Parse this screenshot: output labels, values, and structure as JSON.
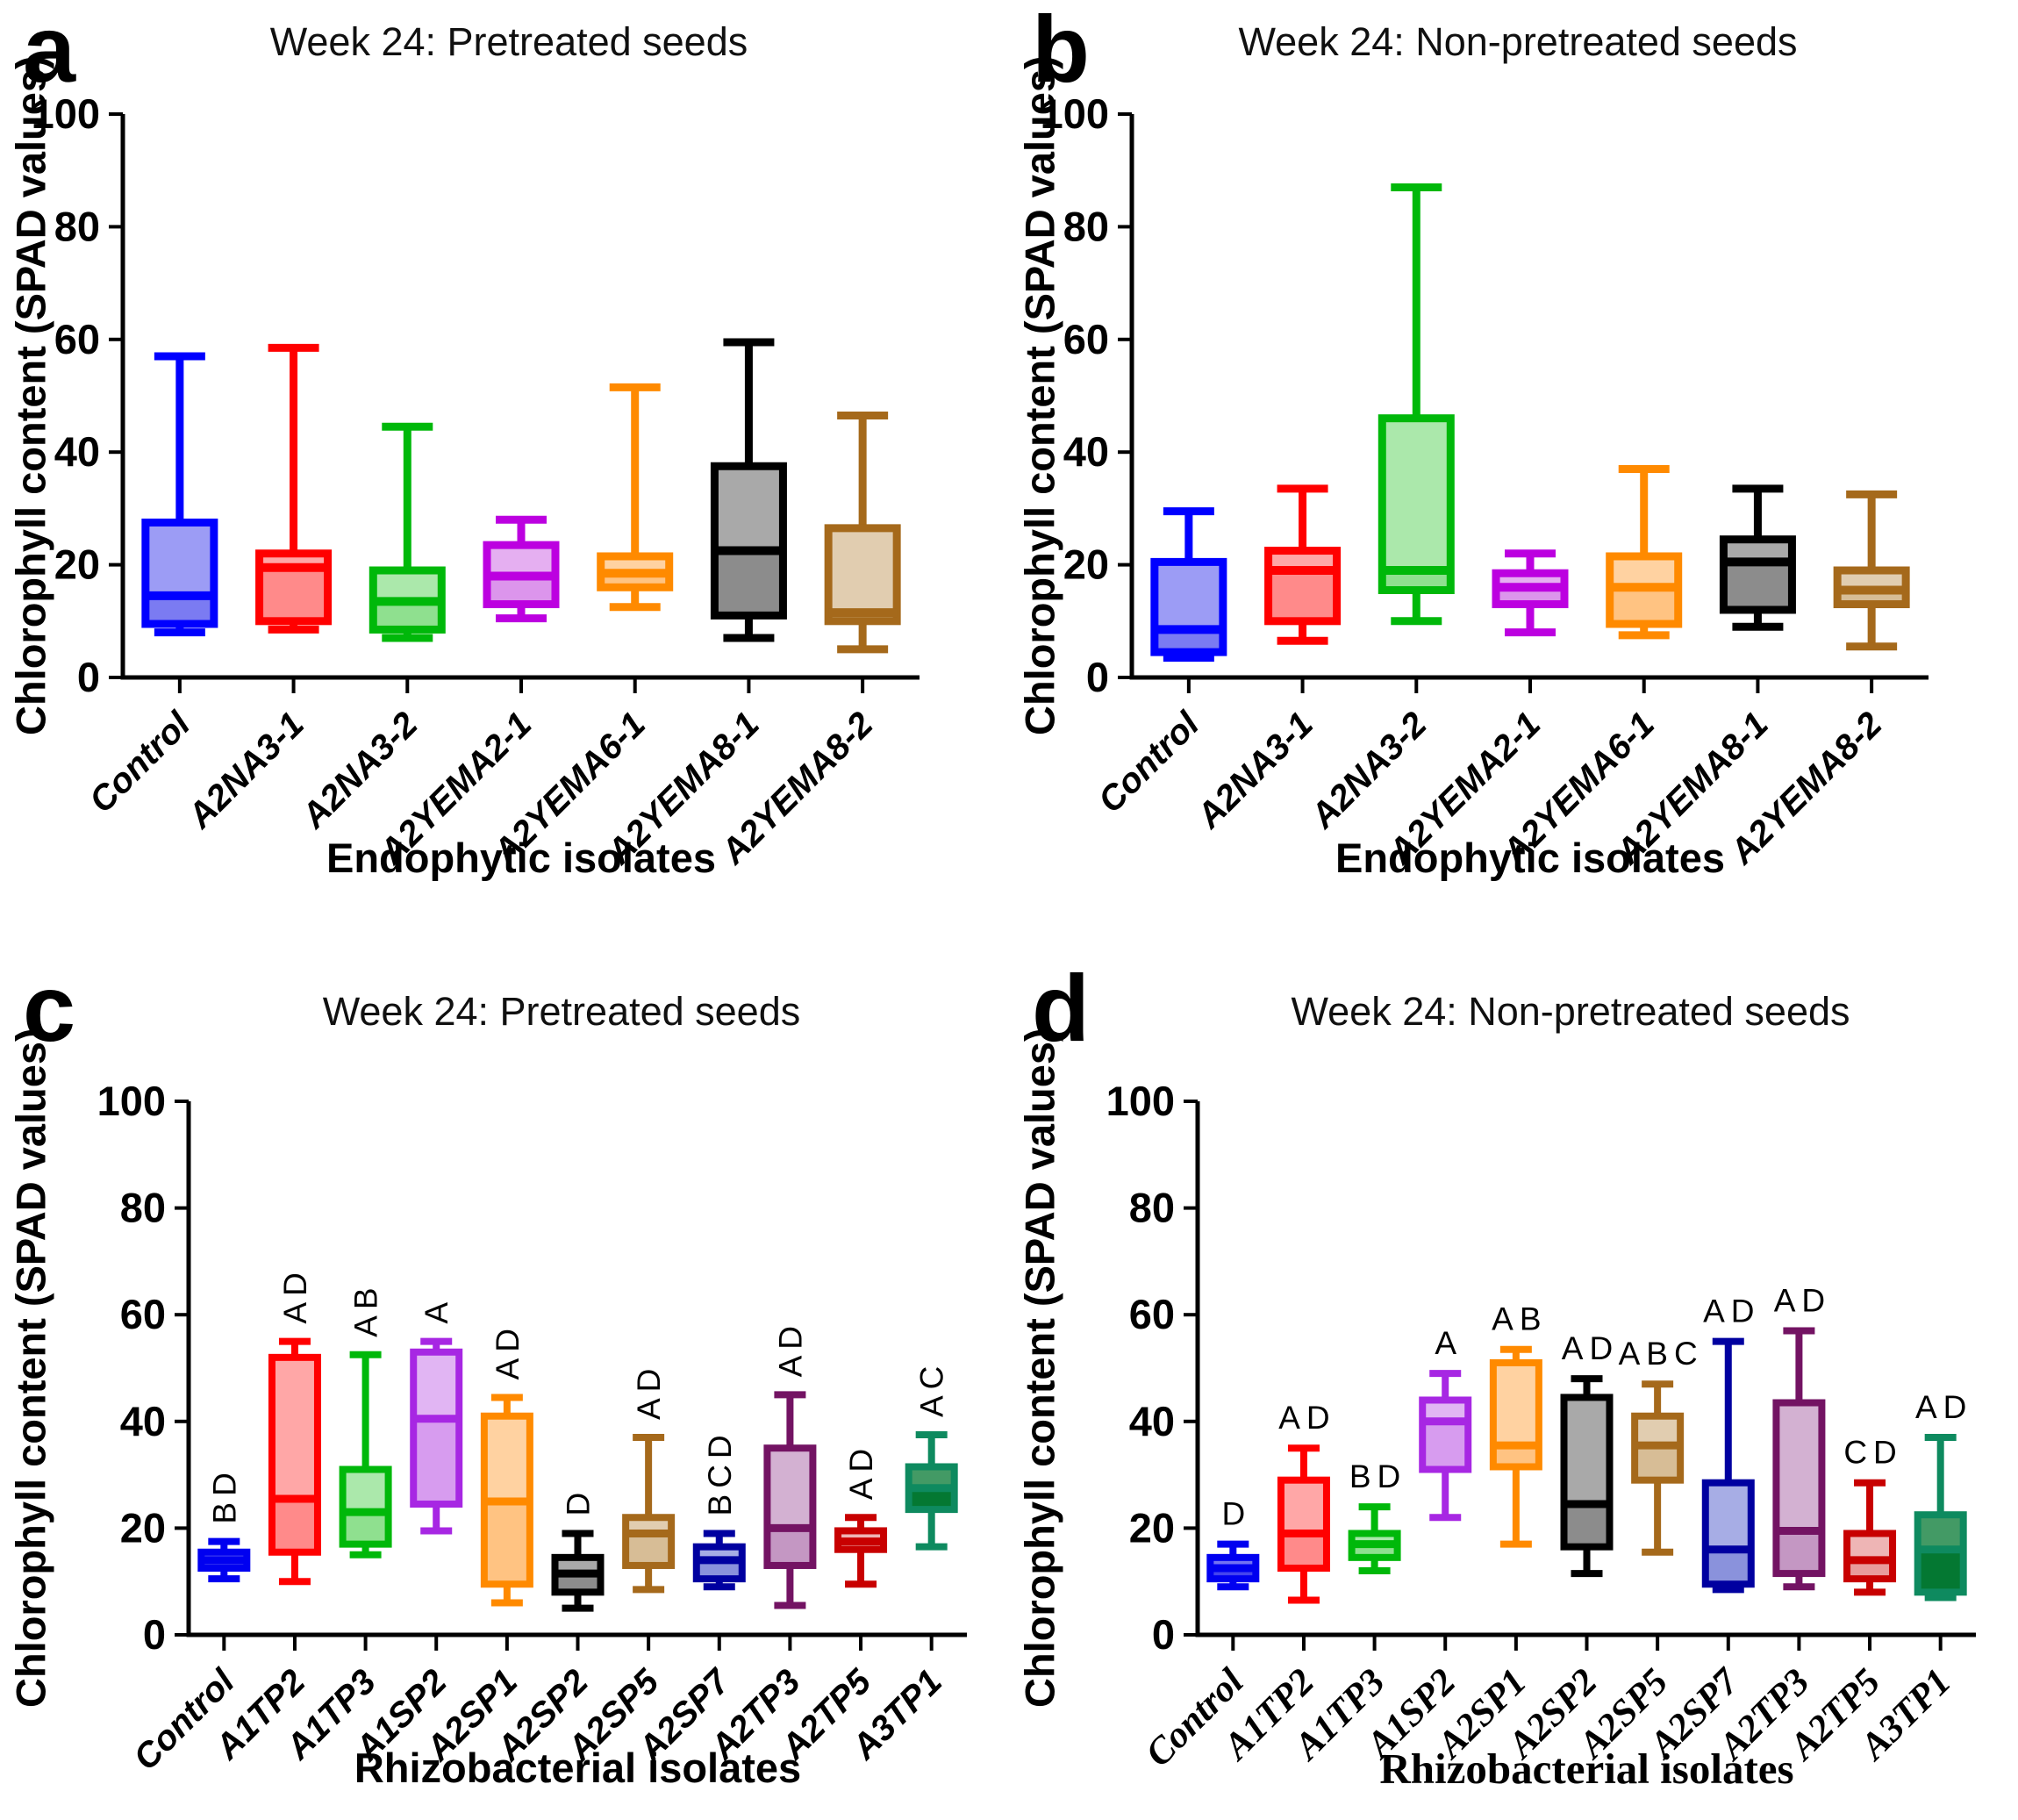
{
  "figure": {
    "background": "#ffffff"
  },
  "chart_data": [
    {
      "panel_letter": "a",
      "type": "box",
      "layout": "ab",
      "title": "Week 24: Pretreated seeds",
      "xlabel": "Endophytic isolates",
      "ylabel": "Chlorophyll content (SPAD values)",
      "ylim": [
        0,
        100
      ],
      "yticks": [
        0,
        20,
        40,
        60,
        80,
        100
      ],
      "grid": false,
      "letters_orientation": null,
      "categories": [
        "Control",
        "A2NA3-1",
        "A2NA3-2",
        "A2YEMA2-1",
        "A2YEMA6-1",
        "A2YEMA8-1",
        "A2YEMA8-2"
      ],
      "boxes": [
        {
          "category": "Control",
          "letters": "",
          "color": {
            "line": "#0000FF",
            "fill": "#7B7BF2"
          },
          "stats": {
            "min": 8,
            "q1": 9.5,
            "median": 14.5,
            "q3": 27.5,
            "max": 57
          }
        },
        {
          "category": "A2NA3-1",
          "letters": "",
          "color": {
            "line": "#FF0000",
            "fill": "#FF8A8A"
          },
          "stats": {
            "min": 8.5,
            "q1": 10,
            "median": 19.5,
            "q3": 22,
            "max": 58.5
          }
        },
        {
          "category": "A2NA3-2",
          "letters": "",
          "color": {
            "line": "#00B80A",
            "fill": "#8FE08F"
          },
          "stats": {
            "min": 7,
            "q1": 8.5,
            "median": 13.5,
            "q3": 19,
            "max": 44.5
          }
        },
        {
          "category": "A2YEMA2-1",
          "letters": "",
          "color": {
            "line": "#BC00E0",
            "fill": "#DC95EC"
          },
          "stats": {
            "min": 10.5,
            "q1": 13,
            "median": 18,
            "q3": 23.5,
            "max": 28
          }
        },
        {
          "category": "A2YEMA6-1",
          "letters": "",
          "color": {
            "line": "#FF8A00",
            "fill": "#FFC382"
          },
          "stats": {
            "min": 12.5,
            "q1": 16,
            "median": 18.5,
            "q3": 21.5,
            "max": 51.5
          }
        },
        {
          "category": "A2YEMA8-1",
          "letters": "",
          "color": {
            "line": "#000000",
            "fill": "#8C8C8C"
          },
          "stats": {
            "min": 7,
            "q1": 11,
            "median": 22.5,
            "q3": 37.5,
            "max": 59.5
          }
        },
        {
          "category": "A2YEMA8-2",
          "letters": "",
          "color": {
            "line": "#A5691B",
            "fill": "#D7BD96"
          },
          "stats": {
            "min": 5,
            "q1": 10,
            "median": 11.5,
            "q3": 26.5,
            "max": 46.5
          }
        }
      ]
    },
    {
      "panel_letter": "b",
      "type": "box",
      "layout": "ab",
      "title": "Week 24: Non-pretreated seeds",
      "xlabel": "Endophytic isolates",
      "ylabel": "Chlorophyll content (SPAD values)",
      "ylim": [
        0,
        100
      ],
      "yticks": [
        0,
        20,
        40,
        60,
        80,
        100
      ],
      "grid": false,
      "letters_orientation": null,
      "categories": [
        "Control",
        "A2NA3-1",
        "A2NA3-2",
        "A2YEMA2-1",
        "A2YEMA6-1",
        "A2YEMA8-1",
        "A2YEMA8-2"
      ],
      "boxes": [
        {
          "category": "Control",
          "letters": "",
          "color": {
            "line": "#0000FF",
            "fill": "#7B7BF2"
          },
          "stats": {
            "min": 3.5,
            "q1": 4.5,
            "median": 8.5,
            "q3": 20.5,
            "max": 29.5
          }
        },
        {
          "category": "A2NA3-1",
          "letters": "",
          "color": {
            "line": "#FF0000",
            "fill": "#FF8A8A"
          },
          "stats": {
            "min": 6.5,
            "q1": 10,
            "median": 19,
            "q3": 22.5,
            "max": 33.5
          }
        },
        {
          "category": "A2NA3-2",
          "letters": "",
          "color": {
            "line": "#00B80A",
            "fill": "#8FE08F"
          },
          "stats": {
            "min": 10,
            "q1": 15.5,
            "median": 19,
            "q3": 46,
            "max": 87
          }
        },
        {
          "category": "A2YEMA2-1",
          "letters": "",
          "color": {
            "line": "#BC00E0",
            "fill": "#DC95EC"
          },
          "stats": {
            "min": 8,
            "q1": 13,
            "median": 16,
            "q3": 18.5,
            "max": 22
          }
        },
        {
          "category": "A2YEMA6-1",
          "letters": "",
          "color": {
            "line": "#FF8A00",
            "fill": "#FFC382"
          },
          "stats": {
            "min": 7.5,
            "q1": 9.5,
            "median": 16,
            "q3": 21.5,
            "max": 37
          }
        },
        {
          "category": "A2YEMA8-1",
          "letters": "",
          "color": {
            "line": "#000000",
            "fill": "#8C8C8C"
          },
          "stats": {
            "min": 9,
            "q1": 12,
            "median": 20.5,
            "q3": 24.5,
            "max": 33.5
          }
        },
        {
          "category": "A2YEMA8-2",
          "letters": "",
          "color": {
            "line": "#A5691B",
            "fill": "#D7BD96"
          },
          "stats": {
            "min": 5.5,
            "q1": 13,
            "median": 15.5,
            "q3": 19,
            "max": 32.5
          }
        }
      ]
    },
    {
      "panel_letter": "c",
      "type": "box",
      "layout": "cd",
      "title": "Week 24: Pretreated seeds",
      "xlabel": "Rhizobacterial isolates",
      "ylabel": "Chlorophyll content (SPAD values)",
      "ylim": [
        0,
        100
      ],
      "yticks": [
        0,
        20,
        40,
        60,
        80,
        100
      ],
      "grid": false,
      "letters_orientation": "vertical",
      "categories": [
        "Control",
        "A1TP2",
        "A1TP3",
        "A1SP2",
        "A2SP1",
        "A2SP2",
        "A2SP5",
        "A2SP7",
        "A2TP3",
        "A2TP5",
        "A3TP1"
      ],
      "boxes": [
        {
          "category": "Control",
          "letters": "BD",
          "color": {
            "line": "#0000F0",
            "fill": "#4444EE"
          },
          "stats": {
            "min": 10.5,
            "q1": 12.5,
            "median": 14,
            "q3": 15.5,
            "max": 17.5
          }
        },
        {
          "category": "A1TP2",
          "letters": "AD",
          "color": {
            "line": "#FF0000",
            "fill": "#FF8A8A"
          },
          "stats": {
            "min": 10,
            "q1": 15.5,
            "median": 25.5,
            "q3": 52,
            "max": 55
          }
        },
        {
          "category": "A1TP3",
          "letters": "AB",
          "color": {
            "line": "#00B80A",
            "fill": "#8FE08F"
          },
          "stats": {
            "min": 15,
            "q1": 17,
            "median": 23,
            "q3": 31,
            "max": 52.5
          }
        },
        {
          "category": "A1SP2",
          "letters": "A",
          "color": {
            "line": "#A727E3",
            "fill": "#D79CEF"
          },
          "stats": {
            "min": 19.5,
            "q1": 24.5,
            "median": 40.5,
            "q3": 53,
            "max": 55
          }
        },
        {
          "category": "A2SP1",
          "letters": "AD",
          "color": {
            "line": "#FF8A00",
            "fill": "#FFC382"
          },
          "stats": {
            "min": 6,
            "q1": 9.5,
            "median": 25,
            "q3": 41,
            "max": 44.5
          }
        },
        {
          "category": "A2SP2",
          "letters": "D",
          "color": {
            "line": "#000000",
            "fill": "#8C8C8C"
          },
          "stats": {
            "min": 5,
            "q1": 8,
            "median": 11.5,
            "q3": 14.5,
            "max": 19
          }
        },
        {
          "category": "A2SP5",
          "letters": "AD",
          "color": {
            "line": "#A5691B",
            "fill": "#D7BD96"
          },
          "stats": {
            "min": 8.5,
            "q1": 13,
            "median": 19,
            "q3": 22,
            "max": 37
          }
        },
        {
          "category": "A2SP7",
          "letters": "BCD",
          "color": {
            "line": "#0000A0",
            "fill": "#8A92DC"
          },
          "stats": {
            "min": 9,
            "q1": 10.5,
            "median": 14,
            "q3": 16.5,
            "max": 19
          }
        },
        {
          "category": "A2TP3",
          "letters": "AD",
          "color": {
            "line": "#731363",
            "fill": "#C497C3"
          },
          "stats": {
            "min": 5.5,
            "q1": 13,
            "median": 20,
            "q3": 35,
            "max": 45
          }
        },
        {
          "category": "A2TP5",
          "letters": "AD",
          "color": {
            "line": "#C80000",
            "fill": "#E89C9C"
          },
          "stats": {
            "min": 9.5,
            "q1": 16,
            "median": 17.5,
            "q3": 19.5,
            "max": 22
          }
        },
        {
          "category": "A3TP1",
          "letters": "AC",
          "color": {
            "line": "#0E8A5F",
            "fill": "#047832"
          },
          "stats": {
            "min": 16.5,
            "q1": 23.5,
            "median": 27.5,
            "q3": 31.5,
            "max": 37.5
          }
        }
      ]
    },
    {
      "panel_letter": "d",
      "type": "box",
      "layout": "cd",
      "title": "Week 24: Non-pretreated seeds",
      "xlabel": "Rhizobacterial isolates",
      "ylabel": "Chlorophyll content (SPAD values)",
      "ylim": [
        0,
        100
      ],
      "yticks": [
        0,
        20,
        40,
        60,
        80,
        100
      ],
      "grid": false,
      "letters_orientation": "horizontal",
      "categories": [
        "Control",
        "A1TP2",
        "A1TP3",
        "A1SP2",
        "A2SP1",
        "A2SP2",
        "A2SP5",
        "A2SP7",
        "A2TP3",
        "A2TP5",
        "A3TP1"
      ],
      "boxes": [
        {
          "category": "Control",
          "letters": "D",
          "color": {
            "line": "#0000F0",
            "fill": "#4444EE"
          },
          "stats": {
            "min": 9,
            "q1": 10.5,
            "median": 12.5,
            "q3": 14.5,
            "max": 17
          }
        },
        {
          "category": "A1TP2",
          "letters": "AD",
          "color": {
            "line": "#FF0000",
            "fill": "#FF8A8A"
          },
          "stats": {
            "min": 6.5,
            "q1": 12.5,
            "median": 19,
            "q3": 29,
            "max": 35
          }
        },
        {
          "category": "A1TP3",
          "letters": "BD",
          "color": {
            "line": "#00B80A",
            "fill": "#8FE08F"
          },
          "stats": {
            "min": 12,
            "q1": 14.5,
            "median": 17,
            "q3": 19,
            "max": 24
          }
        },
        {
          "category": "A1SP2",
          "letters": "A",
          "color": {
            "line": "#A727E3",
            "fill": "#D79CEF"
          },
          "stats": {
            "min": 22,
            "q1": 31,
            "median": 40,
            "q3": 44,
            "max": 49
          }
        },
        {
          "category": "A2SP1",
          "letters": "AB",
          "color": {
            "line": "#FF8A00",
            "fill": "#FFC382"
          },
          "stats": {
            "min": 17,
            "q1": 31.5,
            "median": 35.5,
            "q3": 51,
            "max": 53.5
          }
        },
        {
          "category": "A2SP2",
          "letters": "AD",
          "color": {
            "line": "#000000",
            "fill": "#8C8C8C"
          },
          "stats": {
            "min": 11.5,
            "q1": 16.5,
            "median": 24.5,
            "q3": 44.5,
            "max": 48
          }
        },
        {
          "category": "A2SP5",
          "letters": "ABC",
          "color": {
            "line": "#A5691B",
            "fill": "#D7BD96"
          },
          "stats": {
            "min": 15.5,
            "q1": 29,
            "median": 35.5,
            "q3": 41,
            "max": 47
          }
        },
        {
          "category": "A2SP7",
          "letters": "AD",
          "color": {
            "line": "#0000A0",
            "fill": "#8A92DC"
          },
          "stats": {
            "min": 8.5,
            "q1": 9.5,
            "median": 16,
            "q3": 28.5,
            "max": 55
          }
        },
        {
          "category": "A2TP3",
          "letters": "AD",
          "color": {
            "line": "#731363",
            "fill": "#C497C3"
          },
          "stats": {
            "min": 9,
            "q1": 11.5,
            "median": 19.5,
            "q3": 43.5,
            "max": 57
          }
        },
        {
          "category": "A2TP5",
          "letters": "CD",
          "color": {
            "line": "#C80000",
            "fill": "#E89C9C"
          },
          "stats": {
            "min": 8,
            "q1": 10.5,
            "median": 14,
            "q3": 19,
            "max": 28.5
          }
        },
        {
          "category": "A3TP1",
          "letters": "AD",
          "color": {
            "line": "#0E8A5F",
            "fill": "#047832"
          },
          "stats": {
            "min": 7,
            "q1": 8,
            "median": 16,
            "q3": 22.5,
            "max": 37
          }
        }
      ]
    }
  ]
}
